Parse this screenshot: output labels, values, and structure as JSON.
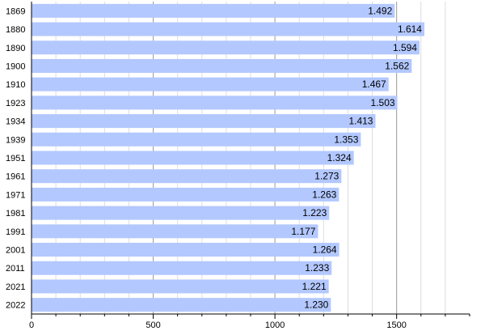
{
  "chart_data": {
    "type": "bar",
    "orientation": "horizontal",
    "categories": [
      "1869",
      "1880",
      "1890",
      "1900",
      "1910",
      "1923",
      "1934",
      "1939",
      "1951",
      "1961",
      "1971",
      "1981",
      "1991",
      "2001",
      "2011",
      "2021",
      "2022"
    ],
    "values": [
      1492,
      1614,
      1594,
      1562,
      1467,
      1503,
      1413,
      1353,
      1324,
      1273,
      1263,
      1223,
      1177,
      1264,
      1233,
      1221,
      1230
    ],
    "value_labels": [
      "1.492",
      "1.614",
      "1.594",
      "1.562",
      "1.467",
      "1.503",
      "1.413",
      "1.353",
      "1.324",
      "1.273",
      "1.263",
      "1.223",
      "1.177",
      "1.264",
      "1.233",
      "1.221",
      "1.230"
    ],
    "title": "",
    "xlabel": "",
    "ylabel": "",
    "xlim": [
      0,
      1800
    ],
    "x_ticks": [
      0,
      500,
      1000,
      1500
    ],
    "x_tick_labels": [
      "0",
      "500",
      "1000",
      "1500"
    ],
    "grid": true,
    "bar_color": "#b3c8ff",
    "major_grid_color": "#999999",
    "minor_grid_color": "#dddddd"
  }
}
